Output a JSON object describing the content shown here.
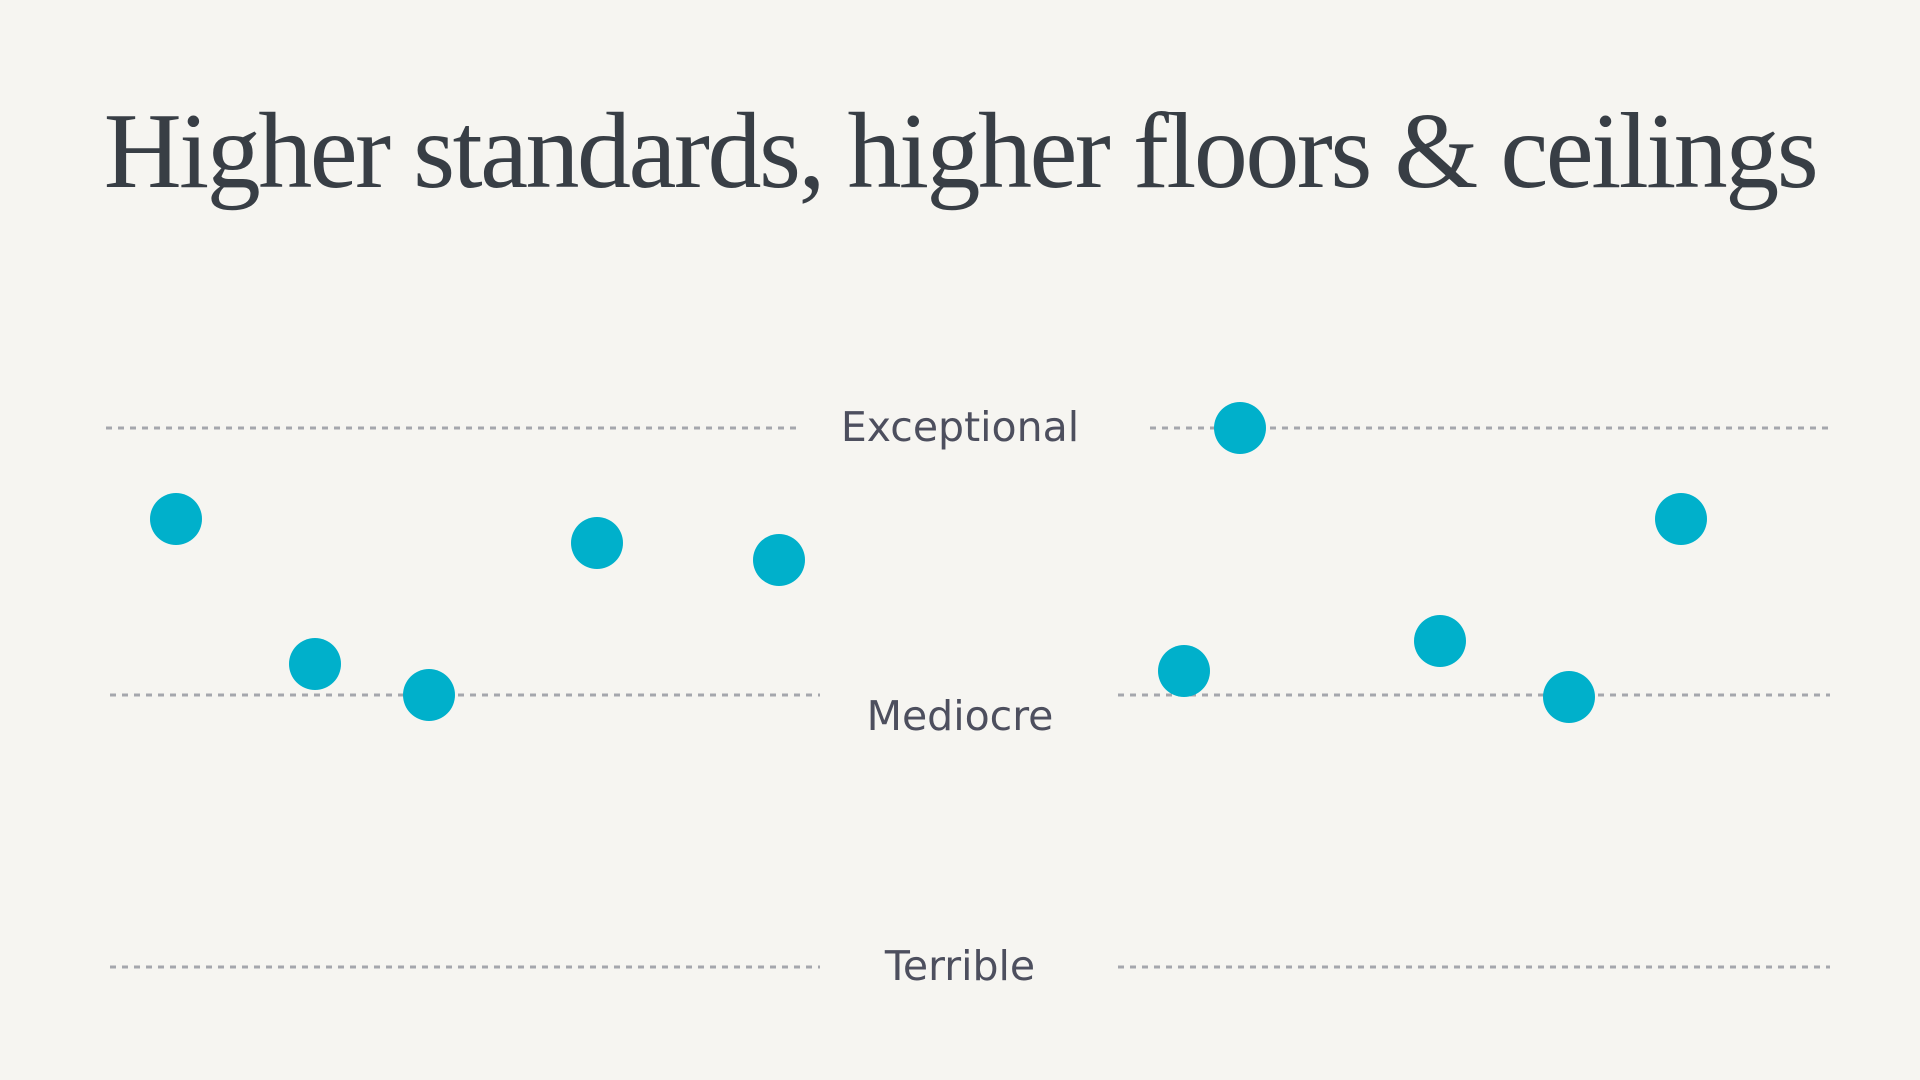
{
  "title": "Higher standards, higher floors & ceilings",
  "colors": {
    "background": "#f6f5f1",
    "dot": "#00b0cb",
    "title": "#383e45",
    "label": "#4d4f5e",
    "guide": "#a5a7ad"
  },
  "levels": {
    "exceptional": "Exceptional",
    "mediocre": "Mediocre",
    "terrible": "Terrible"
  }
}
